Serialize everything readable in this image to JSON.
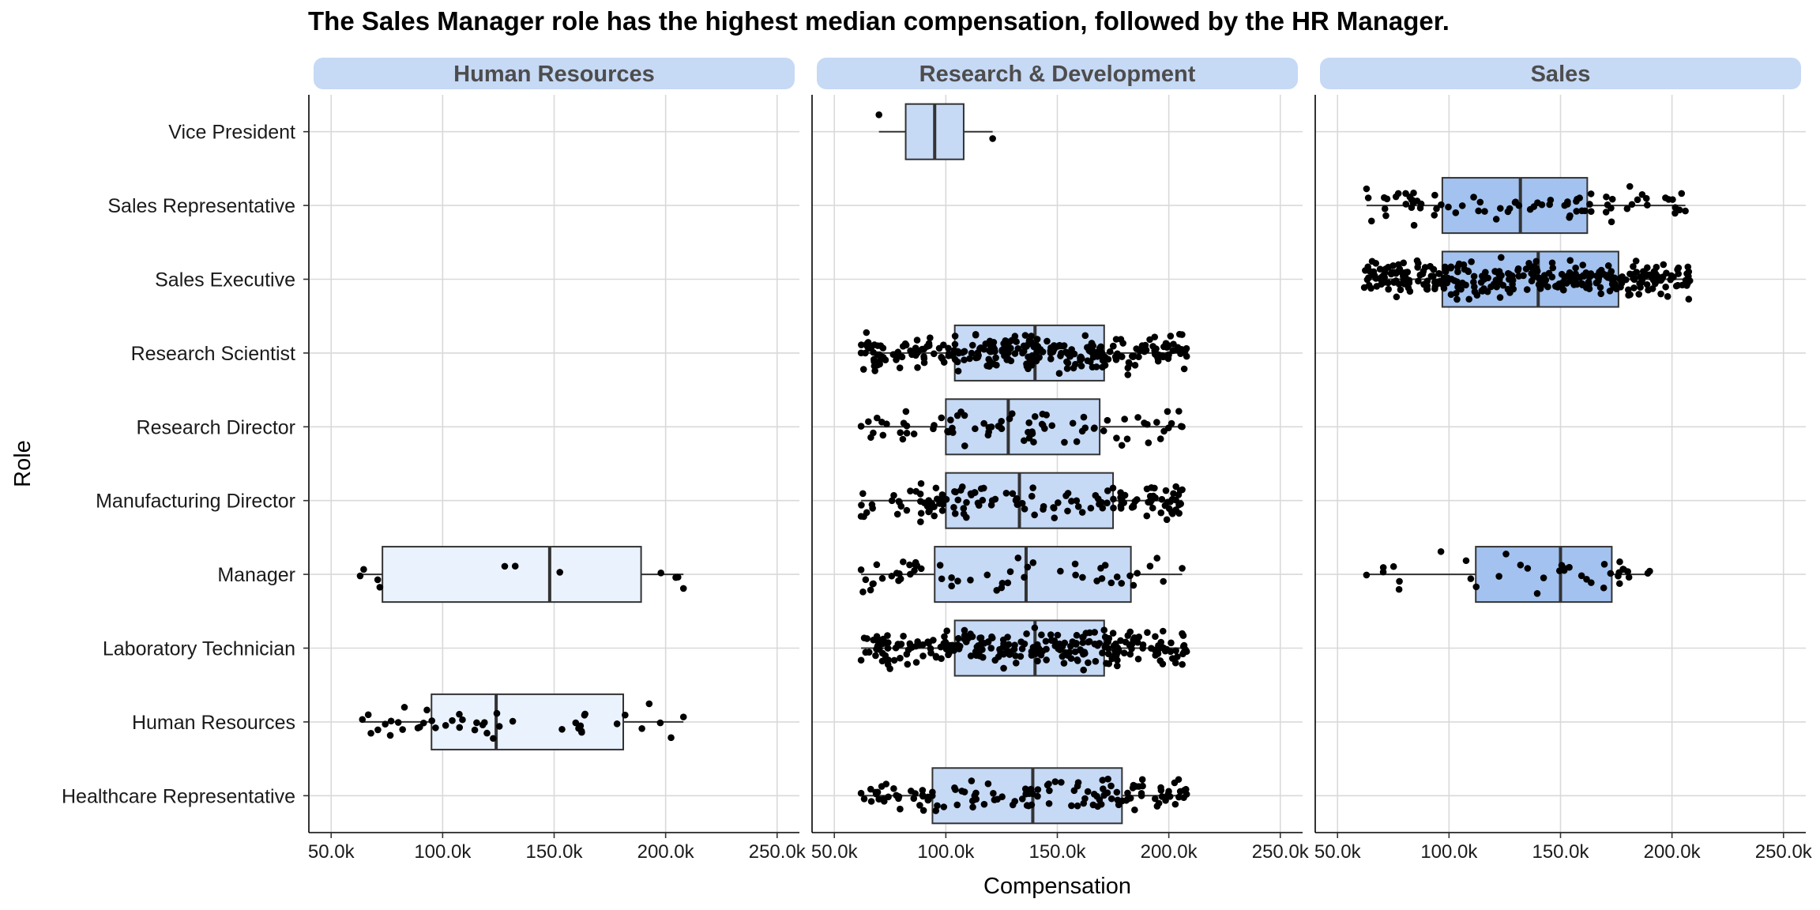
{
  "chart_data": {
    "type": "boxplot",
    "title": "The Sales Manager role has the highest median compensation, followed by the HR Manager.",
    "xlabel": "Compensation",
    "ylabel": "Role",
    "xlim": [
      40000,
      260000
    ],
    "x_ticks": [
      50000,
      100000,
      150000,
      200000,
      250000
    ],
    "x_tick_labels": [
      "50.0k",
      "100.0k",
      "150.0k",
      "200.0k",
      "250.0k"
    ],
    "grid": true,
    "legend": "none",
    "roles": [
      "Healthcare Representative",
      "Human Resources",
      "Laboratory Technician",
      "Manager",
      "Manufacturing Director",
      "Research Director",
      "Research Scientist",
      "Sales Executive",
      "Sales Representative",
      "Vice President"
    ],
    "facets": [
      {
        "name": "Human Resources",
        "boxes": [
          {
            "role": "Manager",
            "min": 63000,
            "q1": 73000,
            "median": 148000,
            "q3": 189000,
            "max": 208000,
            "fill": "#eaf2fd",
            "n": 11
          },
          {
            "role": "Human Resources",
            "min": 64000,
            "q1": 95000,
            "median": 124000,
            "q3": 181000,
            "max": 208000,
            "fill": "#eaf2fd",
            "n": 45
          }
        ]
      },
      {
        "name": "Research & Development",
        "boxes": [
          {
            "role": "Vice President",
            "min": 70000,
            "q1": 82000,
            "median": 95000,
            "q3": 108000,
            "max": 121000,
            "fill": "#c6d9f5",
            "n": 2
          },
          {
            "role": "Research Scientist",
            "min": 62000,
            "q1": 104000,
            "median": 140000,
            "q3": 171000,
            "max": 208000,
            "fill": "#c6d9f5",
            "n": 290
          },
          {
            "role": "Research Director",
            "min": 62000,
            "q1": 100000,
            "median": 128000,
            "q3": 169000,
            "max": 206000,
            "fill": "#c6d9f5",
            "n": 80
          },
          {
            "role": "Manufacturing Director",
            "min": 62000,
            "q1": 100000,
            "median": 133000,
            "q3": 175000,
            "max": 206000,
            "fill": "#c6d9f5",
            "n": 145
          },
          {
            "role": "Manager",
            "min": 62000,
            "q1": 95000,
            "median": 136000,
            "q3": 183000,
            "max": 206000,
            "fill": "#c6d9f5",
            "n": 55
          },
          {
            "role": "Laboratory Technician",
            "min": 62000,
            "q1": 104000,
            "median": 140000,
            "q3": 171000,
            "max": 208000,
            "fill": "#c6d9f5",
            "n": 260
          },
          {
            "role": "Healthcare Representative",
            "min": 62000,
            "q1": 94000,
            "median": 139000,
            "q3": 179000,
            "max": 208000,
            "fill": "#c6d9f5",
            "n": 130
          }
        ]
      },
      {
        "name": "Sales",
        "boxes": [
          {
            "role": "Sales Representative",
            "min": 63000,
            "q1": 97000,
            "median": 132000,
            "q3": 162000,
            "max": 206000,
            "fill": "#a3c2ef",
            "n": 80
          },
          {
            "role": "Sales Executive",
            "min": 62000,
            "q1": 97000,
            "median": 140000,
            "q3": 176000,
            "max": 208000,
            "fill": "#a3c2ef",
            "n": 325
          },
          {
            "role": "Manager",
            "min": 63000,
            "q1": 112000,
            "median": 150000,
            "q3": 173000,
            "max": 190000,
            "fill": "#a3c2ef",
            "n": 37
          }
        ]
      }
    ]
  },
  "colors": {
    "strip": "#c6d9f5",
    "grid": "#d9d9d9",
    "point": "#000000",
    "box_stroke": "#333333"
  }
}
